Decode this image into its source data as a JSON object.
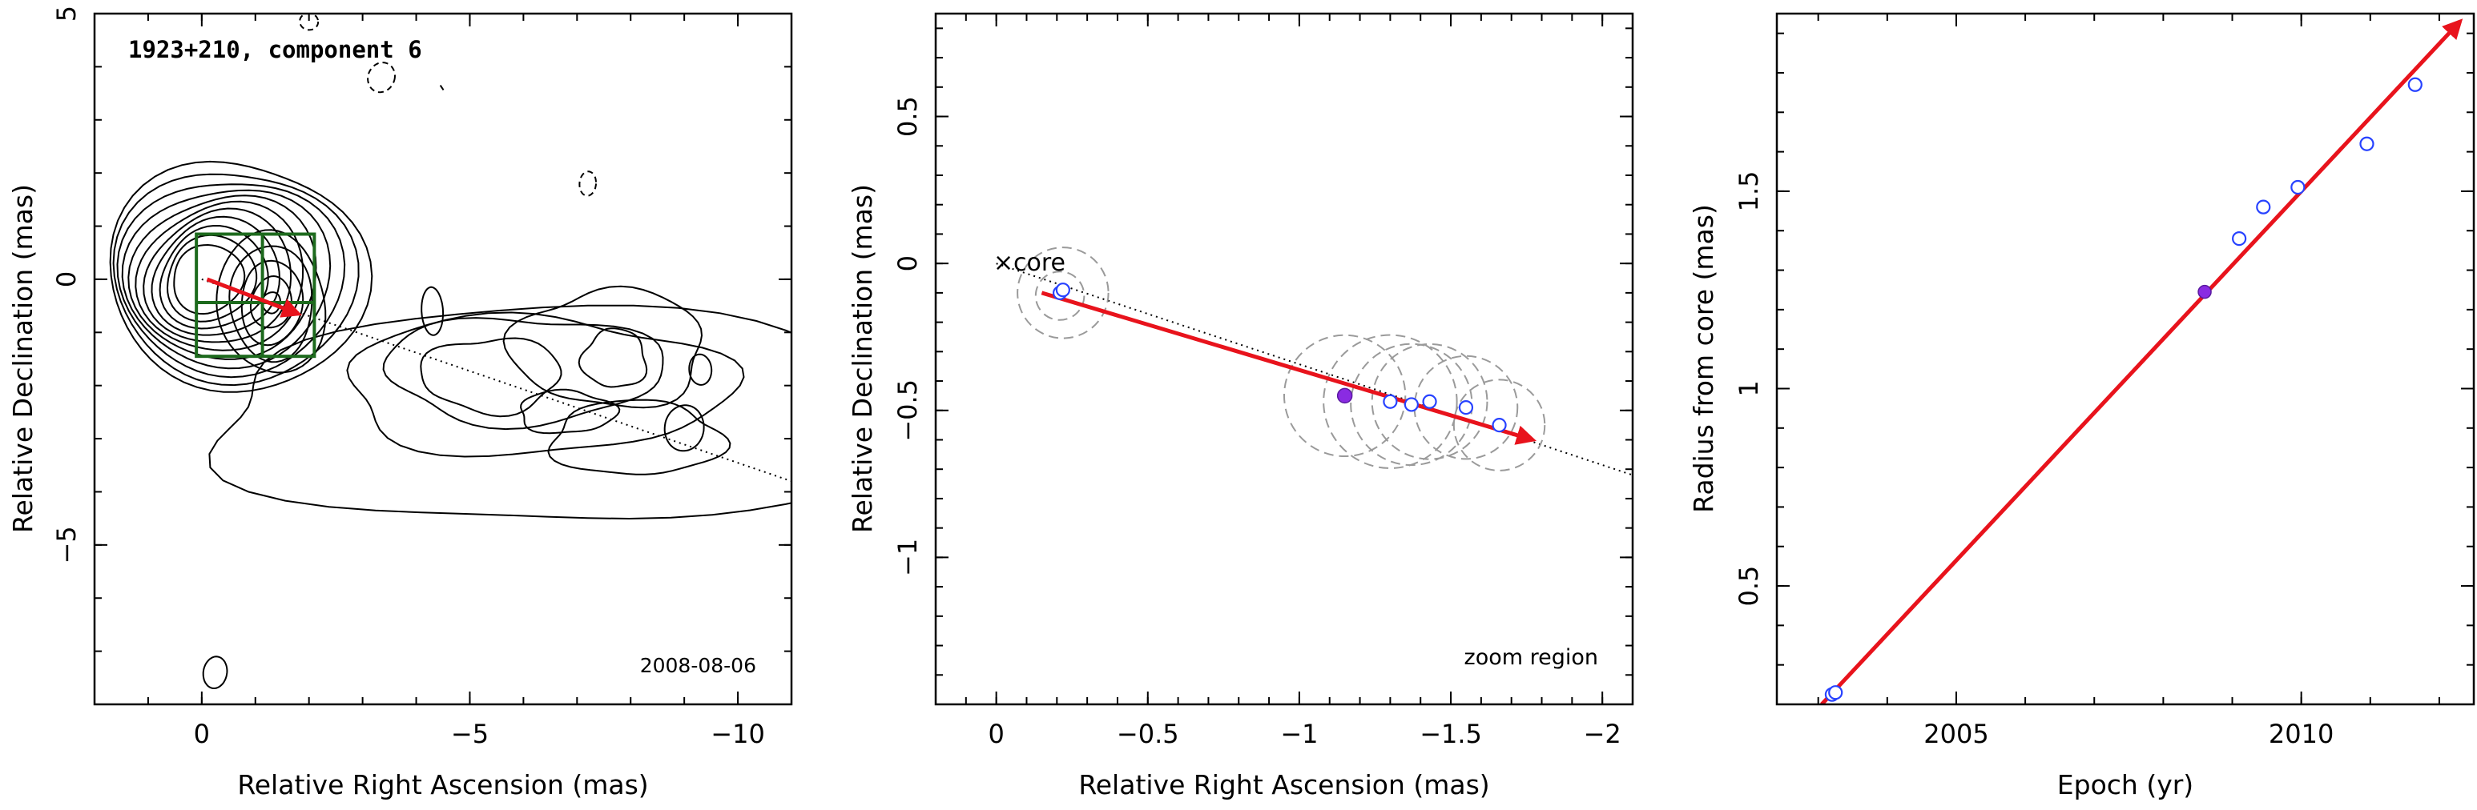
{
  "colors": {
    "trajectory_arrow": "#e8131c",
    "open_points": "#2742ff",
    "filled_point": "#8a2be2",
    "zoom_box": "#1d6a1d",
    "gaussian_circles": "#9a9a9a"
  },
  "chart_data": [
    {
      "type": "contour",
      "title": "1923+210, component 6",
      "annotation": "2008-08-06",
      "xlabel": "Relative Right Ascension (mas)",
      "ylabel": "Relative Declination (mas)",
      "xlim": [
        2,
        -11
      ],
      "ylim": [
        -8,
        5
      ],
      "x_ticks": [
        0,
        -5,
        -10
      ],
      "y_ticks": [
        5,
        0,
        -5
      ],
      "x_ticklabels": [
        "0",
        "−5",
        "−10"
      ],
      "y_ticklabels": [
        "5",
        "0",
        "−5"
      ],
      "contour_levels_count": 11,
      "core_position": [
        0,
        0
      ],
      "component_position": [
        -1.3,
        -0.5
      ],
      "motion_vector": {
        "from": [
          -0.1,
          0.0
        ],
        "to": [
          -1.8,
          -0.65
        ]
      },
      "jet_axis_line": {
        "from": [
          0,
          0
        ],
        "to": [
          -11,
          -3.8
        ]
      },
      "zoom_region_box": {
        "x": [
          0.1,
          -2.1
        ],
        "y": [
          0.85,
          -1.45
        ]
      }
    },
    {
      "type": "scatter",
      "annotation": "zoom region",
      "core_label": "core",
      "xlabel": "Relative Right Ascension (mas)",
      "ylabel": "Relative Declination (mas)",
      "xlim": [
        0.2,
        -2.1
      ],
      "ylim": [
        -1.5,
        0.85
      ],
      "x_ticks": [
        0,
        -0.5,
        -1,
        -1.5,
        -2
      ],
      "y_ticks": [
        0.5,
        0,
        -0.5,
        -1
      ],
      "x_ticklabels": [
        "0",
        "−0.5",
        "−1",
        "−1.5",
        "−2"
      ],
      "y_ticklabels": [
        "0.5",
        "0",
        "−0.5",
        "−1"
      ],
      "series": [
        {
          "marker": "open-circle",
          "x": [
            -0.21,
            -0.22,
            -1.3,
            -1.37,
            -1.43,
            -1.55,
            -1.66
          ],
          "y": [
            -0.1,
            -0.09,
            -0.47,
            -0.48,
            -0.47,
            -0.49,
            -0.55
          ]
        },
        {
          "marker": "filled-circle",
          "x": [
            -1.15
          ],
          "y": [
            -0.45
          ]
        }
      ],
      "component_size_circles": [
        {
          "x": -0.22,
          "y": -0.1,
          "r": 0.15
        },
        {
          "x": -0.21,
          "y": -0.11,
          "r": 0.08
        },
        {
          "x": -1.15,
          "y": -0.45,
          "r": 0.2
        },
        {
          "x": -1.3,
          "y": -0.47,
          "r": 0.22
        },
        {
          "x": -1.37,
          "y": -0.48,
          "r": 0.2
        },
        {
          "x": -1.43,
          "y": -0.47,
          "r": 0.19
        },
        {
          "x": -1.55,
          "y": -0.49,
          "r": 0.17
        },
        {
          "x": -1.66,
          "y": -0.55,
          "r": 0.15
        }
      ],
      "motion_vector": {
        "from": [
          -0.15,
          -0.1
        ],
        "to": [
          -1.77,
          -0.6
        ]
      },
      "jet_axis_line": {
        "from": [
          0,
          0
        ],
        "to": [
          -2.1,
          -0.72
        ]
      }
    },
    {
      "type": "scatter",
      "xlabel": "Epoch (yr)",
      "ylabel": "Radius from core (mas)",
      "xlim": [
        2002.4,
        2012.5
      ],
      "ylim": [
        0.2,
        1.95
      ],
      "x_ticks": [
        2005,
        2010
      ],
      "y_ticks": [
        0.5,
        1,
        1.5
      ],
      "x_ticklabels": [
        "2005",
        "2010"
      ],
      "y_ticklabels": [
        "0.5",
        "1",
        "1.5"
      ],
      "series": [
        {
          "marker": "open-circle",
          "x": [
            2003.2,
            2003.25,
            2009.1,
            2009.45,
            2009.95,
            2010.95,
            2011.65
          ],
          "y": [
            0.225,
            0.23,
            1.38,
            1.46,
            1.51,
            1.62,
            1.77
          ]
        },
        {
          "marker": "filled-circle",
          "x": [
            2008.6
          ],
          "y": [
            1.245
          ]
        }
      ],
      "fit_line": {
        "from": [
          2003.05,
          0.2
        ],
        "to": [
          2012.3,
          1.93
        ]
      }
    }
  ]
}
